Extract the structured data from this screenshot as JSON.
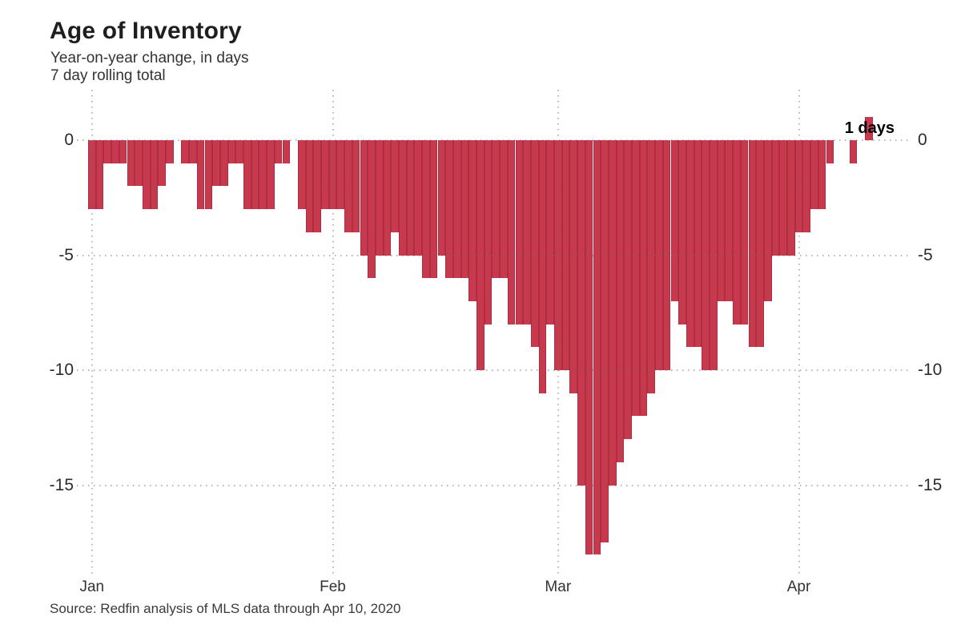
{
  "chart": {
    "title": "Age of Inventory",
    "subtitle_line1": "Year-on-year change, in days",
    "subtitle_line2": "7 day rolling total",
    "source": "Source: Redfin analysis of MLS data through Apr 10, 2020",
    "annotation": {
      "text": "1 days",
      "value": 1
    }
  },
  "chart_data": {
    "type": "bar",
    "title": "Age of Inventory",
    "subtitle": "Year-on-year change, in days — 7 day rolling total",
    "unit": "days",
    "x_start_date": "2020-01-01",
    "x_end_date": "2020-04-10",
    "x_ticks": [
      {
        "label": "Jan",
        "day_index": 0
      },
      {
        "label": "Feb",
        "day_index": 31
      },
      {
        "label": "Mar",
        "day_index": 60
      },
      {
        "label": "Apr",
        "day_index": 91
      }
    ],
    "y_ticks": [
      0,
      -5,
      -10,
      -15
    ],
    "ylim": [
      -18.5,
      2
    ],
    "grid": true,
    "legend": "none",
    "bar_color": "#c73a4e",
    "bar_border_color": "#ae2d42",
    "final_value_label": "1 days",
    "values": [
      -3,
      -3,
      -1,
      -1,
      -1,
      -2,
      -2,
      -3,
      -3,
      -2,
      -1,
      0,
      -1,
      -1,
      -3,
      -3,
      -2,
      -2,
      -1,
      -1,
      -3,
      -3,
      -3,
      -3,
      -1,
      -1,
      0,
      -3,
      -4,
      -4,
      -3,
      -3,
      -3,
      -4,
      -4,
      -5,
      -6,
      -5,
      -5,
      -4,
      -5,
      -5,
      -5,
      -6,
      -6,
      -5,
      -6,
      -6,
      -6,
      -7,
      -10,
      -8,
      -6,
      -6,
      -8,
      -8,
      -8,
      -9,
      -11,
      -8,
      -10,
      -10,
      -11,
      -15,
      -18,
      -18,
      -17.5,
      -15,
      -14,
      -13,
      -12,
      -12,
      -11,
      -10,
      -10,
      -7,
      -8,
      -9,
      -9,
      -10,
      -10,
      -7,
      -7,
      -8,
      -8,
      -9,
      -9,
      -7,
      -5,
      -5,
      -5,
      -4,
      -4,
      -3,
      -3,
      -1,
      0,
      0,
      -1,
      0,
      1
    ]
  }
}
